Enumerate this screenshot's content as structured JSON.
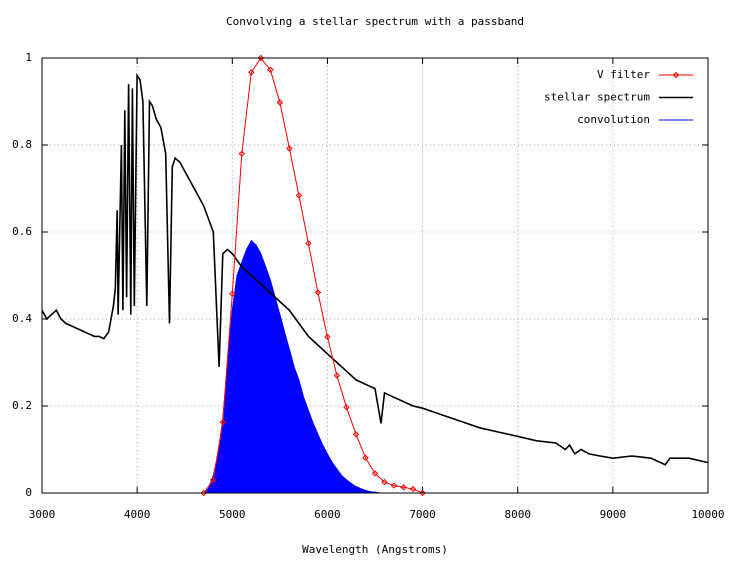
{
  "chart_data": {
    "type": "line",
    "title": "Convolving a stellar spectrum with a passband",
    "x_label": "Wavelength (Angstroms)",
    "xlim": [
      3000,
      10000
    ],
    "xticks": [
      3000,
      4000,
      5000,
      6000,
      7000,
      8000,
      9000,
      10000
    ],
    "ylim": [
      0,
      1
    ],
    "yticks": [
      0,
      0.2,
      0.4,
      0.6,
      0.8,
      1
    ],
    "grid": true,
    "legend": "top-right",
    "series": [
      {
        "name": "V filter",
        "color": "#ff0000",
        "style": "linespoints",
        "x": [
          4700,
          4800,
          4900,
          5000,
          5100,
          5200,
          5300,
          5400,
          5500,
          5600,
          5700,
          5800,
          5900,
          6000,
          6100,
          6200,
          6300,
          6400,
          6500,
          6600,
          6700,
          6800,
          6900,
          7000
        ],
        "values": [
          0,
          0.03,
          0.163,
          0.458,
          0.78,
          0.967,
          1.0,
          0.973,
          0.898,
          0.792,
          0.684,
          0.574,
          0.461,
          0.359,
          0.27,
          0.197,
          0.135,
          0.081,
          0.045,
          0.025,
          0.017,
          0.013,
          0.009,
          0
        ]
      },
      {
        "name": "stellar spectrum",
        "color": "#000000",
        "style": "line",
        "x": [
          3000,
          3050,
          3100,
          3150,
          3200,
          3250,
          3300,
          3350,
          3400,
          3450,
          3500,
          3550,
          3600,
          3650,
          3700,
          3725,
          3750,
          3770,
          3790,
          3800,
          3835,
          3850,
          3870,
          3889,
          3910,
          3933,
          3950,
          3970,
          4000,
          4030,
          4060,
          4101,
          4130,
          4160,
          4200,
          4250,
          4300,
          4340,
          4370,
          4400,
          4450,
          4500,
          4550,
          4600,
          4650,
          4700,
          4750,
          4800,
          4861,
          4900,
          4950,
          5000,
          5100,
          5200,
          5300,
          5400,
          5500,
          5600,
          5700,
          5800,
          5900,
          6000,
          6100,
          6200,
          6300,
          6400,
          6500,
          6563,
          6600,
          6700,
          6800,
          6900,
          7000,
          7200,
          7400,
          7600,
          7800,
          8000,
          8200,
          8400,
          8500,
          8545,
          8600,
          8665,
          8750,
          8865,
          9000,
          9200,
          9400,
          9550,
          9600,
          9800,
          10000
        ],
        "values": [
          0.42,
          0.4,
          0.41,
          0.42,
          0.4,
          0.39,
          0.385,
          0.38,
          0.375,
          0.37,
          0.365,
          0.36,
          0.36,
          0.355,
          0.37,
          0.4,
          0.43,
          0.47,
          0.65,
          0.41,
          0.8,
          0.42,
          0.88,
          0.45,
          0.94,
          0.41,
          0.93,
          0.43,
          0.96,
          0.95,
          0.9,
          0.43,
          0.9,
          0.89,
          0.86,
          0.84,
          0.78,
          0.39,
          0.75,
          0.77,
          0.76,
          0.74,
          0.72,
          0.7,
          0.68,
          0.66,
          0.63,
          0.6,
          0.29,
          0.55,
          0.56,
          0.55,
          0.52,
          0.5,
          0.48,
          0.46,
          0.44,
          0.42,
          0.39,
          0.36,
          0.34,
          0.32,
          0.3,
          0.28,
          0.26,
          0.25,
          0.24,
          0.16,
          0.23,
          0.22,
          0.21,
          0.2,
          0.195,
          0.18,
          0.165,
          0.15,
          0.14,
          0.13,
          0.12,
          0.115,
          0.1,
          0.11,
          0.09,
          0.1,
          0.09,
          0.085,
          0.08,
          0.085,
          0.08,
          0.065,
          0.08,
          0.08,
          0.07
        ]
      },
      {
        "name": "convolution",
        "color": "#0000ff",
        "style": "filled",
        "x": [
          4700,
          4750,
          4800,
          4850,
          4900,
          4950,
          5000,
          5050,
          5100,
          5150,
          5200,
          5250,
          5300,
          5350,
          5400,
          5450,
          5500,
          5550,
          5600,
          5650,
          5700,
          5750,
          5800,
          5850,
          5900,
          5950,
          6000,
          6050,
          6100,
          6150,
          6200,
          6250,
          6300,
          6350,
          6400,
          6450,
          6500,
          6550
        ],
        "values": [
          0,
          0.01,
          0.04,
          0.09,
          0.17,
          0.3,
          0.42,
          0.5,
          0.53,
          0.56,
          0.58,
          0.57,
          0.55,
          0.52,
          0.49,
          0.45,
          0.41,
          0.37,
          0.33,
          0.29,
          0.26,
          0.22,
          0.19,
          0.16,
          0.135,
          0.11,
          0.09,
          0.07,
          0.055,
          0.04,
          0.03,
          0.022,
          0.015,
          0.01,
          0.006,
          0.003,
          0.002,
          0
        ]
      }
    ]
  }
}
